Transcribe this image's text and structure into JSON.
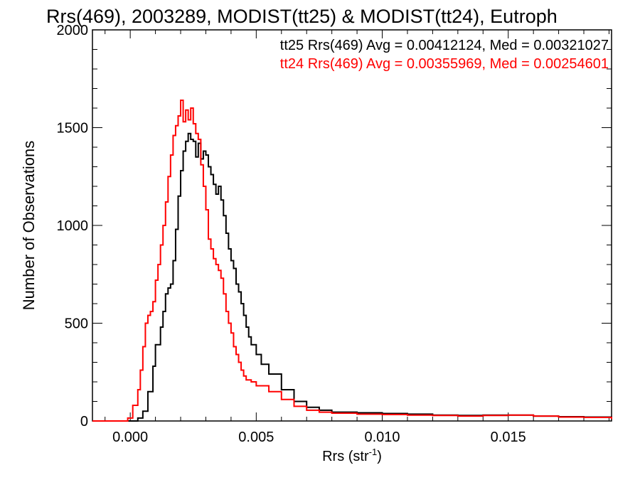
{
  "chart_data": {
    "type": "line",
    "step": true,
    "title": "Rrs(469), 2003289, MODIST(tt25) & MODIST(tt24), Eutroph",
    "xlabel": "Rrs (str",
    "xlabel_sup": "-1",
    "xlabel_end": ")",
    "ylabel": "Number of Observations",
    "xlim": [
      -0.0015,
      0.0191
    ],
    "ylim": [
      0,
      2000
    ],
    "xticks": [
      0.0,
      0.005,
      0.01,
      0.015
    ],
    "xtick_labels": [
      "0.000",
      "0.005",
      "0.010",
      "0.015"
    ],
    "yticks": [
      0,
      500,
      1000,
      1500,
      2000
    ],
    "ytick_labels": [
      "0",
      "500",
      "1000",
      "1500",
      "2000"
    ],
    "grid": false,
    "legend_position": "top-right",
    "series": [
      {
        "name": "tt25",
        "color": "#000000",
        "label": "tt25 Rrs(469) Avg = 0.00412124, Med = 0.00321027",
        "points": [
          [
            -0.0015,
            0
          ],
          [
            0.0,
            0
          ],
          [
            0.0003,
            15
          ],
          [
            0.0005,
            50
          ],
          [
            0.0007,
            150
          ],
          [
            0.0009,
            280
          ],
          [
            0.001,
            390
          ],
          [
            0.0012,
            480
          ],
          [
            0.0013,
            560
          ],
          [
            0.0014,
            650
          ],
          [
            0.0015,
            680
          ],
          [
            0.0016,
            700
          ],
          [
            0.0017,
            820
          ],
          [
            0.0018,
            980
          ],
          [
            0.0019,
            1150
          ],
          [
            0.002,
            1280
          ],
          [
            0.0021,
            1380
          ],
          [
            0.0022,
            1430
          ],
          [
            0.0023,
            1470
          ],
          [
            0.0024,
            1440
          ],
          [
            0.0025,
            1430
          ],
          [
            0.0026,
            1350
          ],
          [
            0.0027,
            1420
          ],
          [
            0.0028,
            1340
          ],
          [
            0.0029,
            1380
          ],
          [
            0.003,
            1360
          ],
          [
            0.0031,
            1300
          ],
          [
            0.0032,
            1260
          ],
          [
            0.0033,
            1210
          ],
          [
            0.0034,
            1160
          ],
          [
            0.0035,
            1200
          ],
          [
            0.0036,
            1130
          ],
          [
            0.0037,
            1050
          ],
          [
            0.0038,
            960
          ],
          [
            0.0039,
            880
          ],
          [
            0.004,
            820
          ],
          [
            0.0041,
            780
          ],
          [
            0.0042,
            700
          ],
          [
            0.0043,
            660
          ],
          [
            0.0044,
            600
          ],
          [
            0.0045,
            540
          ],
          [
            0.0046,
            480
          ],
          [
            0.0047,
            430
          ],
          [
            0.0048,
            390
          ],
          [
            0.005,
            340
          ],
          [
            0.0052,
            290
          ],
          [
            0.0055,
            240
          ],
          [
            0.006,
            160
          ],
          [
            0.0065,
            100
          ],
          [
            0.007,
            70
          ],
          [
            0.0075,
            55
          ],
          [
            0.008,
            45
          ],
          [
            0.009,
            42
          ],
          [
            0.01,
            38
          ],
          [
            0.011,
            35
          ],
          [
            0.012,
            30
          ],
          [
            0.013,
            28
          ],
          [
            0.014,
            30
          ],
          [
            0.015,
            30
          ],
          [
            0.016,
            25
          ],
          [
            0.017,
            22
          ],
          [
            0.018,
            20
          ],
          [
            0.0191,
            12
          ]
        ]
      },
      {
        "name": "tt24",
        "color": "#ff0000",
        "label": "tt24 Rrs(469) Avg = 0.00355969, Med = 0.00254601",
        "points": [
          [
            -0.0015,
            0
          ],
          [
            -0.0003,
            0
          ],
          [
            -0.0001,
            15
          ],
          [
            0.0001,
            80
          ],
          [
            0.0003,
            160
          ],
          [
            0.0004,
            260
          ],
          [
            0.0005,
            380
          ],
          [
            0.0006,
            500
          ],
          [
            0.0007,
            540
          ],
          [
            0.0008,
            560
          ],
          [
            0.0009,
            610
          ],
          [
            0.001,
            720
          ],
          [
            0.0011,
            800
          ],
          [
            0.0012,
            900
          ],
          [
            0.0013,
            1000
          ],
          [
            0.0014,
            1120
          ],
          [
            0.0015,
            1250
          ],
          [
            0.0016,
            1360
          ],
          [
            0.0017,
            1460
          ],
          [
            0.0018,
            1510
          ],
          [
            0.0019,
            1560
          ],
          [
            0.002,
            1640
          ],
          [
            0.0021,
            1530
          ],
          [
            0.0022,
            1590
          ],
          [
            0.0023,
            1540
          ],
          [
            0.0024,
            1600
          ],
          [
            0.0025,
            1520
          ],
          [
            0.0026,
            1470
          ],
          [
            0.0027,
            1440
          ],
          [
            0.0028,
            1310
          ],
          [
            0.0029,
            1200
          ],
          [
            0.003,
            1080
          ],
          [
            0.0031,
            930
          ],
          [
            0.0032,
            880
          ],
          [
            0.0033,
            830
          ],
          [
            0.0034,
            800
          ],
          [
            0.0035,
            770
          ],
          [
            0.0036,
            730
          ],
          [
            0.0037,
            650
          ],
          [
            0.0038,
            560
          ],
          [
            0.0039,
            500
          ],
          [
            0.004,
            450
          ],
          [
            0.0041,
            380
          ],
          [
            0.0042,
            340
          ],
          [
            0.0043,
            300
          ],
          [
            0.0044,
            260
          ],
          [
            0.0045,
            230
          ],
          [
            0.0046,
            210
          ],
          [
            0.0048,
            200
          ],
          [
            0.005,
            180
          ],
          [
            0.0055,
            150
          ],
          [
            0.006,
            110
          ],
          [
            0.0065,
            75
          ],
          [
            0.007,
            55
          ],
          [
            0.0075,
            45
          ],
          [
            0.008,
            40
          ],
          [
            0.009,
            35
          ],
          [
            0.01,
            33
          ],
          [
            0.011,
            30
          ],
          [
            0.012,
            28
          ],
          [
            0.013,
            25
          ],
          [
            0.014,
            28
          ],
          [
            0.015,
            30
          ],
          [
            0.016,
            25
          ],
          [
            0.017,
            20
          ],
          [
            0.018,
            18
          ],
          [
            0.0191,
            10
          ]
        ]
      }
    ]
  }
}
